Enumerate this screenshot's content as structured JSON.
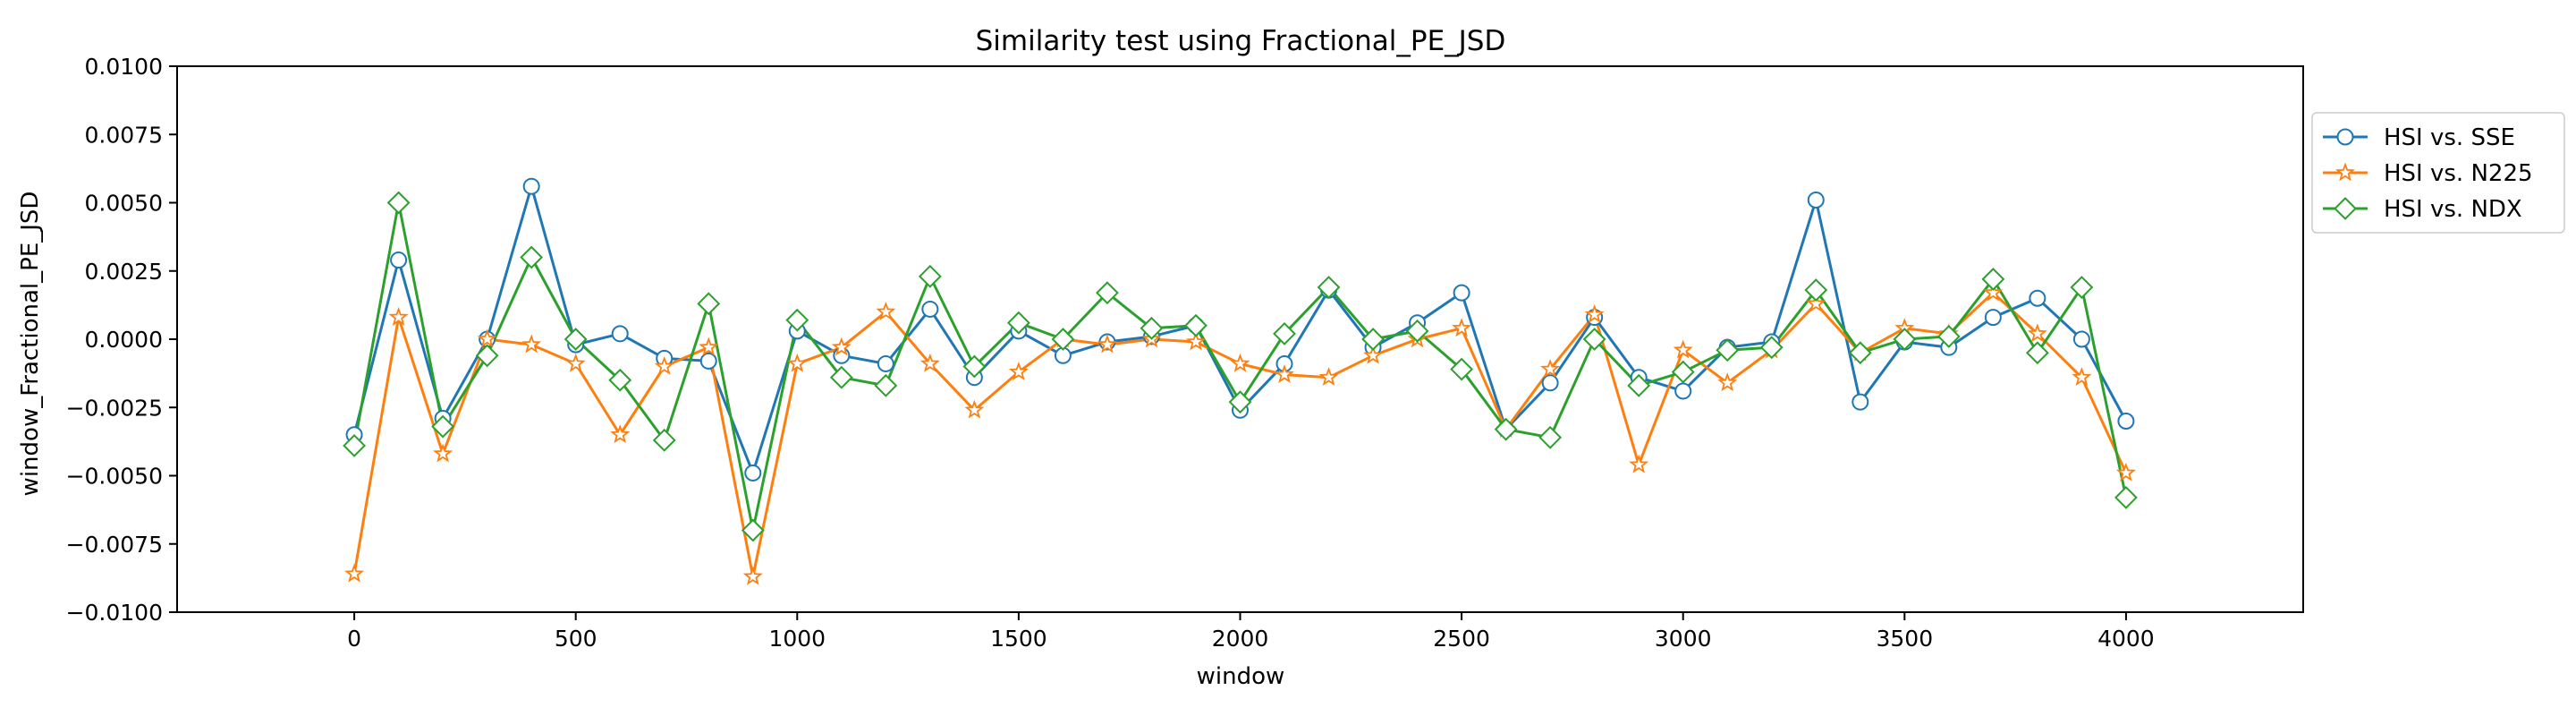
{
  "chart_data": {
    "type": "line",
    "title": "Similarity test using Fractional_PE_JSD",
    "xlabel": "window",
    "ylabel": "window_Fractional_PE_JSD",
    "xlim": [
      -400,
      4400
    ],
    "ylim": [
      -0.01,
      0.01
    ],
    "x_ticks": [
      0,
      500,
      1000,
      1500,
      2000,
      2500,
      3000,
      3500,
      4000
    ],
    "x_tick_labels": [
      "0",
      "500",
      "1000",
      "1500",
      "2000",
      "2500",
      "3000",
      "3500",
      "4000"
    ],
    "y_ticks": [
      -0.01,
      -0.0075,
      -0.005,
      -0.0025,
      0.0,
      0.0025,
      0.005,
      0.0075,
      0.01
    ],
    "y_tick_labels": [
      "−0.0100",
      "−0.0075",
      "−0.0050",
      "−0.0025",
      "0.0000",
      "0.0025",
      "0.0050",
      "0.0075",
      "0.0100"
    ],
    "grid": false,
    "legend_position": "outside-right-top",
    "x": [
      0,
      100,
      200,
      300,
      400,
      500,
      600,
      700,
      800,
      900,
      1000,
      1100,
      1200,
      1300,
      1400,
      1500,
      1600,
      1700,
      1800,
      1900,
      2000,
      2100,
      2200,
      2300,
      2400,
      2500,
      2600,
      2700,
      2800,
      2900,
      3000,
      3100,
      3200,
      3300,
      3400,
      3500,
      3600,
      3700,
      3800,
      3900,
      4000
    ],
    "series": [
      {
        "name": "HSI vs. SSE",
        "color": "#1f77b4",
        "marker": "circle",
        "values": [
          -0.0035,
          0.0029,
          -0.0029,
          0.0,
          0.0056,
          -0.0002,
          0.0002,
          -0.0007,
          -0.0008,
          -0.0049,
          0.0003,
          -0.0006,
          -0.0009,
          0.0011,
          -0.0014,
          0.0003,
          -0.0006,
          -0.0001,
          0.0001,
          0.0005,
          -0.0026,
          -0.0009,
          0.0018,
          -0.0003,
          0.0006,
          0.0017,
          -0.0033,
          -0.0016,
          0.0008,
          -0.0014,
          -0.0019,
          -0.0003,
          -0.0001,
          0.0051,
          -0.0023,
          -0.0001,
          -0.0003,
          0.0008,
          0.0015,
          0.0,
          -0.003
        ]
      },
      {
        "name": "HSI vs. N225",
        "color": "#ff7f0e",
        "marker": "star",
        "values": [
          -0.0086,
          0.0008,
          -0.0042,
          0.0,
          -0.0002,
          -0.0009,
          -0.0035,
          -0.001,
          -0.0003,
          -0.0087,
          -0.0009,
          -0.0003,
          0.001,
          -0.0009,
          -0.0026,
          -0.0012,
          0.0,
          -0.0002,
          0.0,
          -0.0001,
          -0.0009,
          -0.0013,
          -0.0014,
          -0.0006,
          0.0,
          0.0004,
          -0.0033,
          -0.0011,
          0.0009,
          -0.0046,
          -0.0004,
          -0.0016,
          -0.0004,
          0.0013,
          -0.0005,
          0.0004,
          0.0002,
          0.0017,
          0.0002,
          -0.0014,
          -0.0049
        ]
      },
      {
        "name": "HSI vs. NDX",
        "color": "#2ca02c",
        "marker": "diamond",
        "values": [
          -0.0039,
          0.005,
          -0.0032,
          -0.0006,
          0.003,
          0.0,
          -0.0015,
          -0.0037,
          0.0013,
          -0.007,
          0.0007,
          -0.0014,
          -0.0017,
          0.0023,
          -0.001,
          0.0006,
          0.0,
          0.0017,
          0.0004,
          0.0005,
          -0.0023,
          0.0002,
          0.0019,
          0.0,
          0.0003,
          -0.0011,
          -0.0033,
          -0.0036,
          0.0,
          -0.0017,
          -0.0012,
          -0.0004,
          -0.0003,
          0.0018,
          -0.0005,
          0.0,
          0.0001,
          0.0022,
          -0.0005,
          0.0019,
          -0.0058
        ]
      }
    ]
  }
}
